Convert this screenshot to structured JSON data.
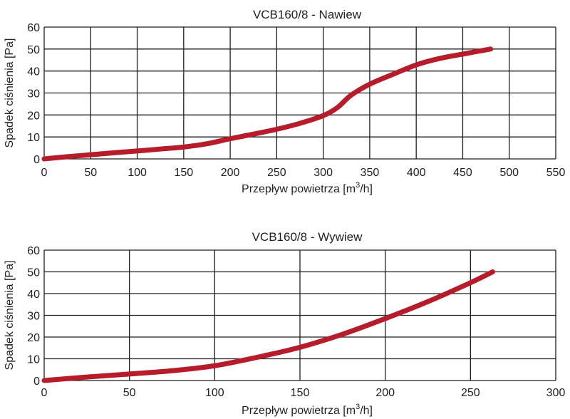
{
  "chart_data": [
    {
      "type": "line",
      "title": "VCB160/8 - Nawiew",
      "xlabel_prefix": "Przepływ powietrza [m",
      "xlabel_sup": "3",
      "xlabel_suffix": "/h]",
      "ylabel": "Spadek ciśnienia [Pa]",
      "xlim": [
        0,
        550
      ],
      "ylim": [
        0,
        60
      ],
      "xticks": [
        0,
        50,
        100,
        150,
        200,
        250,
        300,
        350,
        400,
        450,
        500,
        550
      ],
      "yticks": [
        0,
        10,
        20,
        30,
        40,
        50,
        60
      ],
      "grid": true,
      "color": "#b71c2a",
      "series": [
        {
          "name": "Nawiew",
          "x": [
            0,
            25,
            50,
            75,
            100,
            125,
            150,
            175,
            200,
            225,
            250,
            275,
            300,
            315,
            330,
            350,
            375,
            400,
            425,
            450,
            480
          ],
          "y": [
            0,
            1,
            1.9,
            2.8,
            3.6,
            4.5,
            5.4,
            6.9,
            9.2,
            11.3,
            13.5,
            16.2,
            19.7,
            23.3,
            29,
            34,
            38.5,
            42.8,
            45.7,
            47.7,
            50
          ]
        }
      ]
    },
    {
      "type": "line",
      "title": "VCB160/8 - Wywiew",
      "xlabel_prefix": "Przepływ powietrza [m",
      "xlabel_sup": "3",
      "xlabel_suffix": "/h]",
      "ylabel": "Spadek ciśnienia [Pa]",
      "xlim": [
        0,
        300
      ],
      "ylim": [
        0,
        60
      ],
      "xticks": [
        0,
        50,
        100,
        150,
        200,
        250,
        300
      ],
      "yticks": [
        0,
        10,
        20,
        30,
        40,
        50,
        60
      ],
      "grid": true,
      "color": "#b71c2a",
      "series": [
        {
          "name": "Wywiew",
          "x": [
            0,
            25,
            50,
            75,
            100,
            125,
            150,
            175,
            200,
            225,
            250,
            263
          ],
          "y": [
            0,
            1.6,
            3,
            4.5,
            6.8,
            10.7,
            15.3,
            21.3,
            28.5,
            36.3,
            45,
            50
          ]
        }
      ]
    }
  ]
}
